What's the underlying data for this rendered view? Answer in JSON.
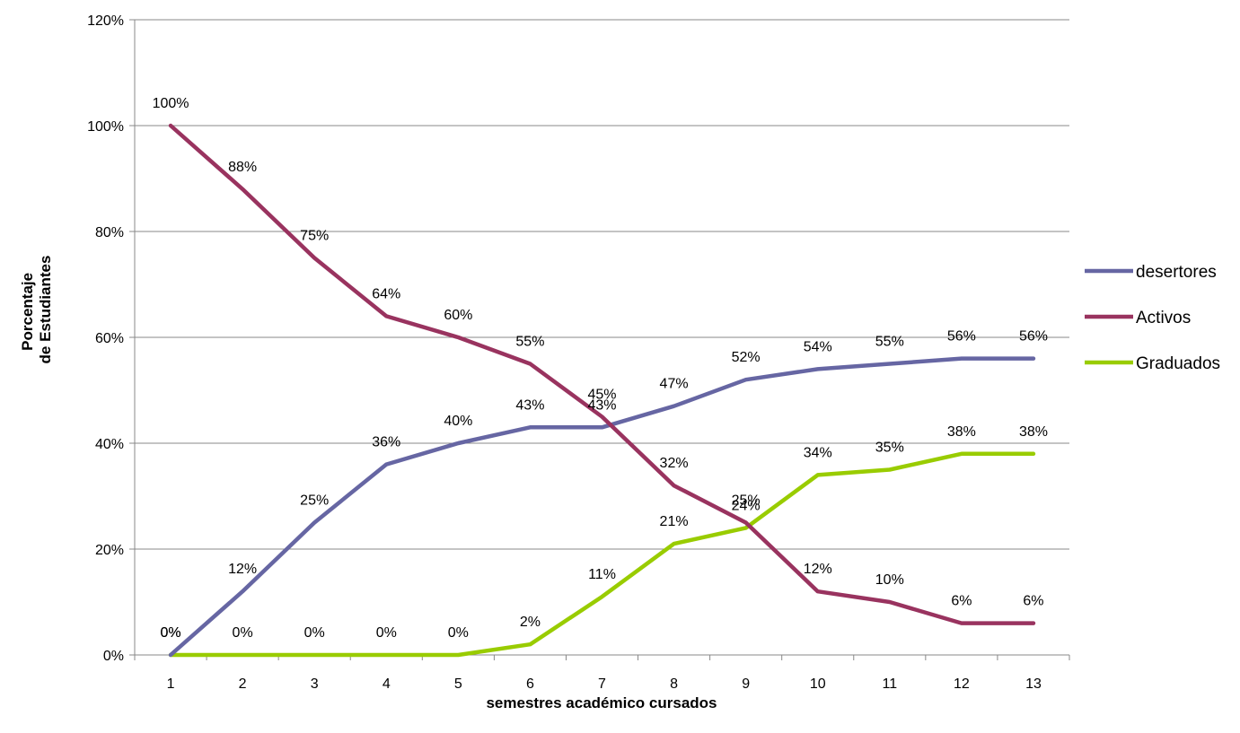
{
  "chart_data": {
    "type": "line",
    "xlabel": "semestres  académico cursados",
    "ylabel_line1": "Porcentaje",
    "ylabel_line2": "de Estudiantes",
    "x": [
      "1",
      "2",
      "3",
      "4",
      "5",
      "6",
      "7",
      "8",
      "9",
      "10",
      "11",
      "12",
      "13"
    ],
    "ylim": [
      0,
      120
    ],
    "yticks": [
      0,
      20,
      40,
      60,
      80,
      100,
      120
    ],
    "ytick_labels": [
      "0%",
      "20%",
      "40%",
      "60%",
      "80%",
      "100%",
      "120%"
    ],
    "grid": true,
    "legend_position": "right",
    "series": [
      {
        "name": "desertores",
        "color": "#6666a3",
        "values": [
          0,
          12,
          25,
          36,
          40,
          43,
          43,
          47,
          52,
          54,
          55,
          56,
          56
        ],
        "labels": [
          "0%",
          "12%",
          "25%",
          "36%",
          "40%",
          "43%",
          "43%",
          "47%",
          "52%",
          "54%",
          "55%",
          "56%",
          "56%"
        ]
      },
      {
        "name": "Activos",
        "color": "#99335f",
        "values": [
          100,
          88,
          75,
          64,
          60,
          55,
          45,
          32,
          25,
          12,
          10,
          6,
          6
        ],
        "labels": [
          "100%",
          "88%",
          "75%",
          "64%",
          "60%",
          "55%",
          "45%",
          "32%",
          "25%",
          "12%",
          "10%",
          "6%",
          "6%"
        ]
      },
      {
        "name": "Graduados",
        "color": "#99cc00",
        "values": [
          0,
          0,
          0,
          0,
          0,
          2,
          11,
          21,
          24,
          34,
          35,
          38,
          38
        ],
        "labels": [
          "0%",
          "0%",
          "0%",
          "0%",
          "0%",
          "2%",
          "11%",
          "21%",
          "24%",
          "34%",
          "35%",
          "38%",
          "38%"
        ]
      }
    ]
  }
}
